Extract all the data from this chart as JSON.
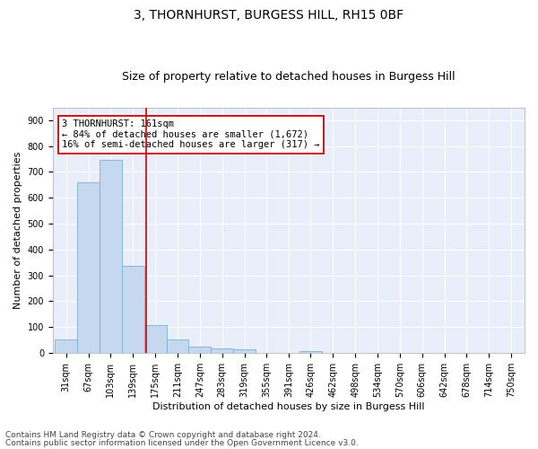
{
  "title": "3, THORNHURST, BURGESS HILL, RH15 0BF",
  "subtitle": "Size of property relative to detached houses in Burgess Hill",
  "xlabel": "Distribution of detached houses by size in Burgess Hill",
  "ylabel": "Number of detached properties",
  "footnote1": "Contains HM Land Registry data © Crown copyright and database right 2024.",
  "footnote2": "Contains public sector information licensed under the Open Government Licence v3.0.",
  "annotation_line1": "3 THORNHURST: 161sqm",
  "annotation_line2": "← 84% of detached houses are smaller (1,672)",
  "annotation_line3": "16% of semi-detached houses are larger (317) →",
  "property_size": 161,
  "bar_labels": [
    "31sqm",
    "67sqm",
    "103sqm",
    "139sqm",
    "175sqm",
    "211sqm",
    "247sqm",
    "283sqm",
    "319sqm",
    "355sqm",
    "391sqm",
    "426sqm",
    "462sqm",
    "498sqm",
    "534sqm",
    "570sqm",
    "606sqm",
    "642sqm",
    "678sqm",
    "714sqm",
    "750sqm"
  ],
  "bar_values": [
    50,
    660,
    748,
    335,
    107,
    50,
    25,
    17,
    14,
    0,
    0,
    8,
    0,
    0,
    0,
    0,
    0,
    0,
    0,
    0,
    0
  ],
  "bar_edges": [
    31,
    67,
    103,
    139,
    175,
    211,
    247,
    283,
    319,
    355,
    391,
    426,
    462,
    498,
    534,
    570,
    606,
    642,
    678,
    714,
    750
  ],
  "bar_color": "#c5d8f0",
  "bar_edge_color": "#7aafd4",
  "vline_x": 161,
  "vline_color": "#cc0000",
  "ylim": [
    0,
    950
  ],
  "yticks": [
    0,
    100,
    200,
    300,
    400,
    500,
    600,
    700,
    800,
    900
  ],
  "bg_color": "#e8eefa",
  "grid_color": "#ffffff",
  "title_fontsize": 10,
  "subtitle_fontsize": 9,
  "axis_label_fontsize": 8,
  "tick_fontsize": 7,
  "annotation_fontsize": 7.5,
  "footnote_fontsize": 6.5
}
